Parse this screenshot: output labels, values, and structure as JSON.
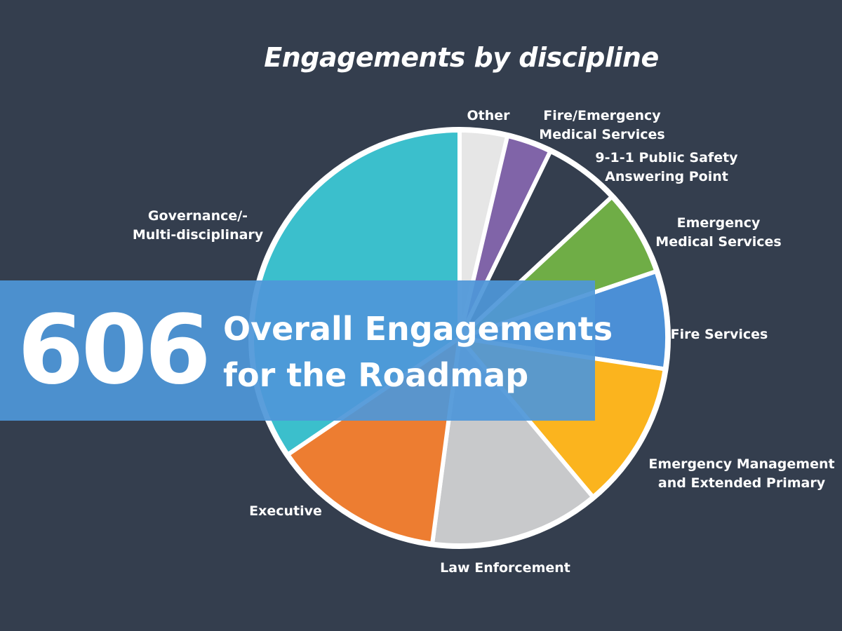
{
  "title": "Engagements by discipline",
  "banner": {
    "number": "606",
    "line1": "Overall Engagements",
    "line2": "for the Roadmap"
  },
  "colors": {
    "background": "#343e4e",
    "banner": "#4f97d8",
    "slice_border": "#ffffff"
  },
  "chart_data": {
    "type": "pie",
    "title": "Engagements by discipline",
    "total": 606,
    "slices": [
      {
        "label": "Other",
        "label_lines": [
          "Other"
        ],
        "percent": 3.7,
        "color": "#e6e6e6"
      },
      {
        "label": "Fire/Emergency Medical Services",
        "label_lines": [
          "Fire/Emergency",
          "Medical Services"
        ],
        "percent": 3.5,
        "color": "#8064a8"
      },
      {
        "label": "9-1-1 Public Safety Answering Point",
        "label_lines": [
          "9-1-1 Public Safety",
          "Answering Point"
        ],
        "percent": 5.9,
        "color": "#343e4e"
      },
      {
        "label": "Emergency Medical Services",
        "label_lines": [
          "Emergency",
          "Medical Services"
        ],
        "percent": 6.7,
        "color": "#6fad46"
      },
      {
        "label": "Fire Services",
        "label_lines": [
          "Fire Services"
        ],
        "percent": 7.6,
        "color": "#4b8fd6"
      },
      {
        "label": "Emergency Management and Extended Primary",
        "label_lines": [
          "Emergency Management",
          "and Extended Primary"
        ],
        "percent": 11.5,
        "color": "#fbb41e"
      },
      {
        "label": "Law Enforcement",
        "label_lines": [
          "Law Enforcement"
        ],
        "percent": 13.2,
        "color": "#c8c9cb"
      },
      {
        "label": "Executive",
        "label_lines": [
          "Executive"
        ],
        "percent": 13.4,
        "color": "#ed7d31"
      },
      {
        "label": "Governance/-Multi-disciplinary",
        "label_lines": [
          "Governance/-",
          "Multi-disciplinary"
        ],
        "percent": 34.5,
        "color": "#3bbfcc"
      }
    ],
    "start": "12 o'clock",
    "direction": "clockwise",
    "legend": "none"
  }
}
